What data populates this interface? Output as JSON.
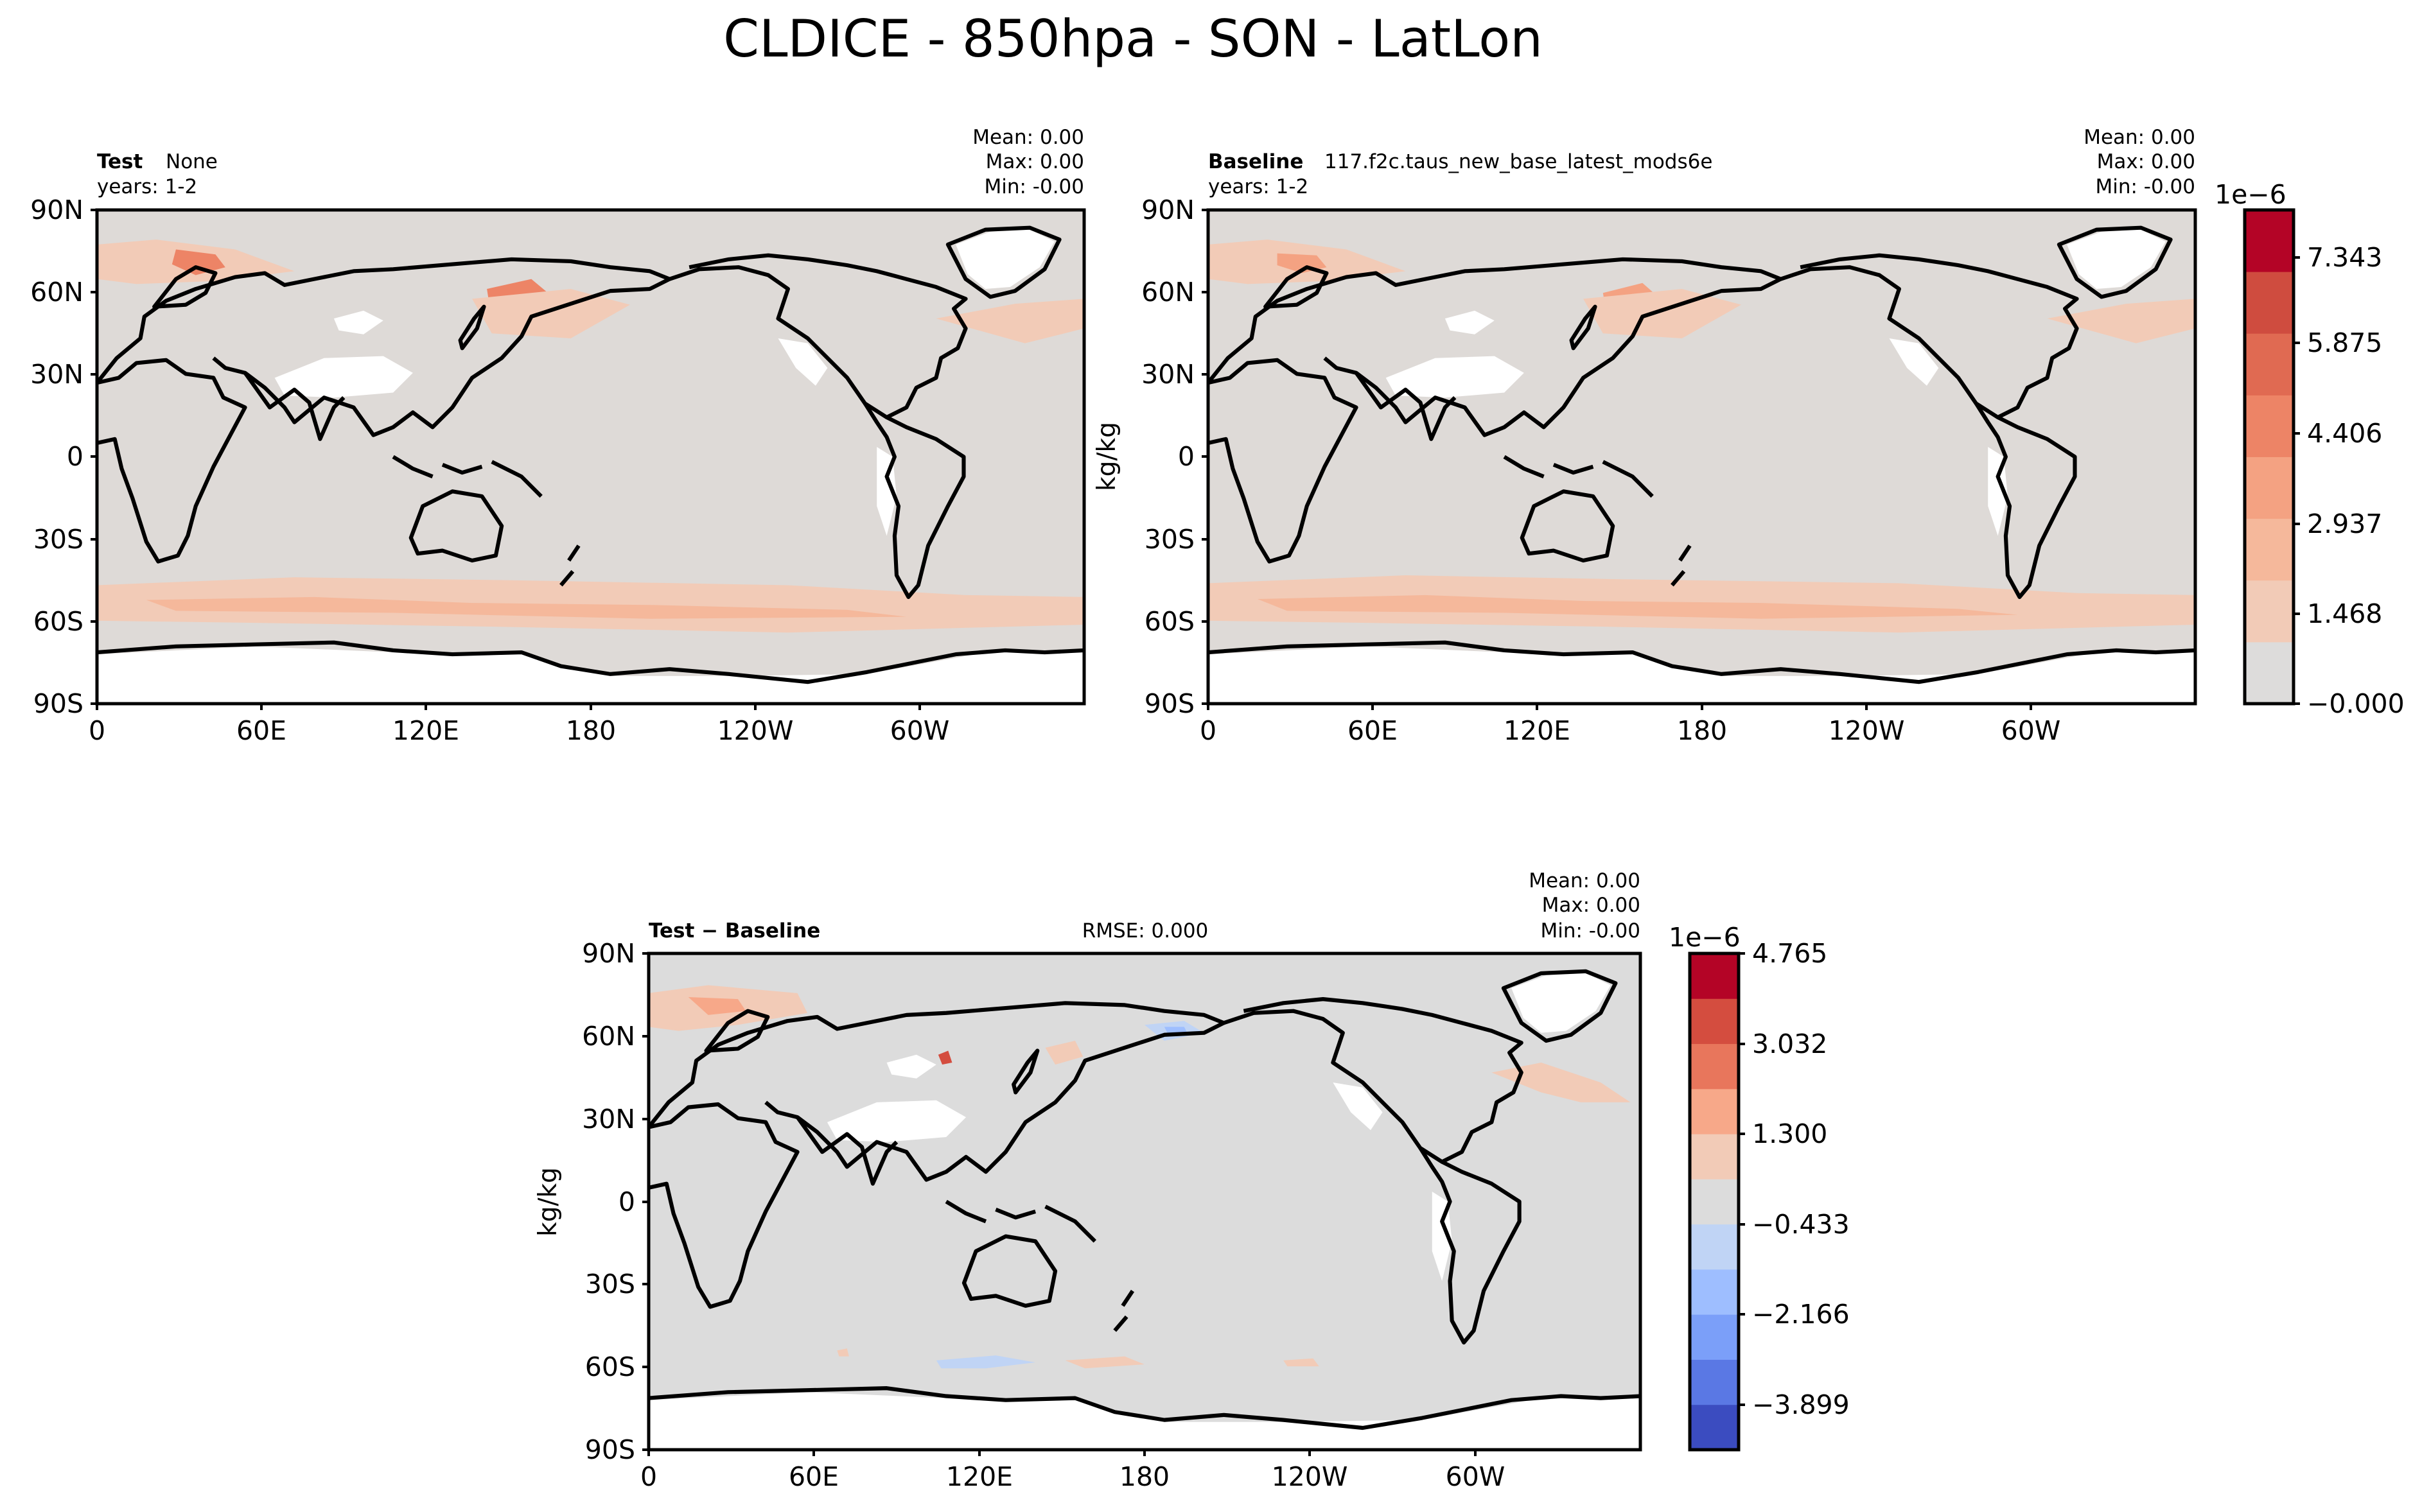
{
  "title": "CLDICE - 850hpa - SON - LatLon",
  "colors": {
    "near_zero_seq": "#dedad7",
    "near_zero_div": "#dcdcdc",
    "land_missing": "#ffffff",
    "warm_scale": [
      "#dddcdb",
      "#f2cbb7",
      "#f5b89b",
      "#f4a282",
      "#ed8466",
      "#e06a52",
      "#cf4c3f",
      "#b40426"
    ],
    "div_scale": [
      "#3b4cc0",
      "#5a78e4",
      "#7b9ff9",
      "#9ebeff",
      "#c0d4f5",
      "#dcdcdc",
      "#f2cbb7",
      "#f7a889",
      "#e8765c",
      "#d44d3f",
      "#b40426"
    ]
  },
  "panels": {
    "test": {
      "name_label": "Test",
      "name_value": "None",
      "years": "years: 1-2",
      "mean": "Mean:  0.00",
      "max": "Max:  0.00",
      "min": "Min: -0.00",
      "yticks": [
        "90N",
        "60N",
        "30N",
        "0",
        "30S",
        "60S",
        "90S"
      ],
      "xticks": [
        "0",
        "60E",
        "120E",
        "180",
        "120W",
        "60W"
      ]
    },
    "baseline": {
      "name_label": "Baseline",
      "name_value": "117.f2c.taus_new_base_latest_mods6e",
      "years": "years: 1-2",
      "mean": "Mean:  0.00",
      "max": "Max:  0.00",
      "min": "Min: -0.00",
      "ylabel": "kg/kg",
      "yticks": [
        "90N",
        "60N",
        "30N",
        "0",
        "30S",
        "60S",
        "90S"
      ],
      "xticks": [
        "0",
        "60E",
        "120E",
        "180",
        "120W",
        "60W"
      ]
    },
    "diff": {
      "name_label": "Test − Baseline",
      "rmse": "RMSE: 0.000",
      "mean": "Mean:  0.00",
      "max": "Max:  0.00",
      "min": "Min: -0.00",
      "ylabel": "kg/kg",
      "yticks": [
        "90N",
        "60N",
        "30N",
        "0",
        "30S",
        "60S",
        "90S"
      ],
      "xticks": [
        "0",
        "60E",
        "120E",
        "180",
        "120W",
        "60W"
      ]
    }
  },
  "colorbars": {
    "top": {
      "exponent": "1e−6",
      "ticks": [
        "7.343",
        "5.875",
        "4.406",
        "2.937",
        "1.468",
        "−0.000"
      ]
    },
    "bottom": {
      "exponent": "1e−6",
      "ticks": [
        "4.765",
        "3.032",
        "1.300",
        "−0.433",
        "−2.166",
        "−3.899"
      ]
    }
  },
  "chart_data": [
    {
      "type": "heatmap",
      "panel": "Test",
      "subtitle": "Test: None",
      "years": "1-2",
      "xlim": [
        0,
        360
      ],
      "ylim": [
        -90,
        90
      ],
      "x_ticks": [
        "0",
        "60E",
        "120E",
        "180",
        "120W",
        "60W"
      ],
      "y_ticks": [
        "90N",
        "60N",
        "30N",
        "0",
        "30S",
        "60S",
        "90S"
      ],
      "stats": {
        "mean": 0.0,
        "max": 0.0,
        "min": -0.0
      },
      "colorbar_levels": [
        -0.0,
        1.468,
        2.937,
        4.406,
        5.875,
        7.343
      ],
      "colorbar_exponent": "1e-6"
    },
    {
      "type": "heatmap",
      "panel": "Baseline",
      "subtitle": "Baseline: 117.f2c.taus_new_base_latest_mods6e",
      "years": "1-2",
      "xlim": [
        0,
        360
      ],
      "ylim": [
        -90,
        90
      ],
      "ylabel": "kg/kg",
      "x_ticks": [
        "0",
        "60E",
        "120E",
        "180",
        "120W",
        "60W"
      ],
      "y_ticks": [
        "90N",
        "60N",
        "30N",
        "0",
        "30S",
        "60S",
        "90S"
      ],
      "stats": {
        "mean": 0.0,
        "max": 0.0,
        "min": -0.0
      },
      "colorbar_levels": [
        -0.0,
        1.468,
        2.937,
        4.406,
        5.875,
        7.343
      ],
      "colorbar_exponent": "1e-6"
    },
    {
      "type": "heatmap",
      "panel": "Test - Baseline",
      "rmse": 0.0,
      "xlim": [
        0,
        360
      ],
      "ylim": [
        -90,
        90
      ],
      "ylabel": "kg/kg",
      "x_ticks": [
        "0",
        "60E",
        "120E",
        "180",
        "120W",
        "60W"
      ],
      "y_ticks": [
        "90N",
        "60N",
        "30N",
        "0",
        "30S",
        "60S",
        "90S"
      ],
      "stats": {
        "mean": 0.0,
        "max": 0.0,
        "min": -0.0
      },
      "colorbar_levels": [
        -3.899,
        -2.166,
        -0.433,
        1.3,
        3.032,
        4.765
      ],
      "colorbar_exponent": "1e-6"
    }
  ]
}
